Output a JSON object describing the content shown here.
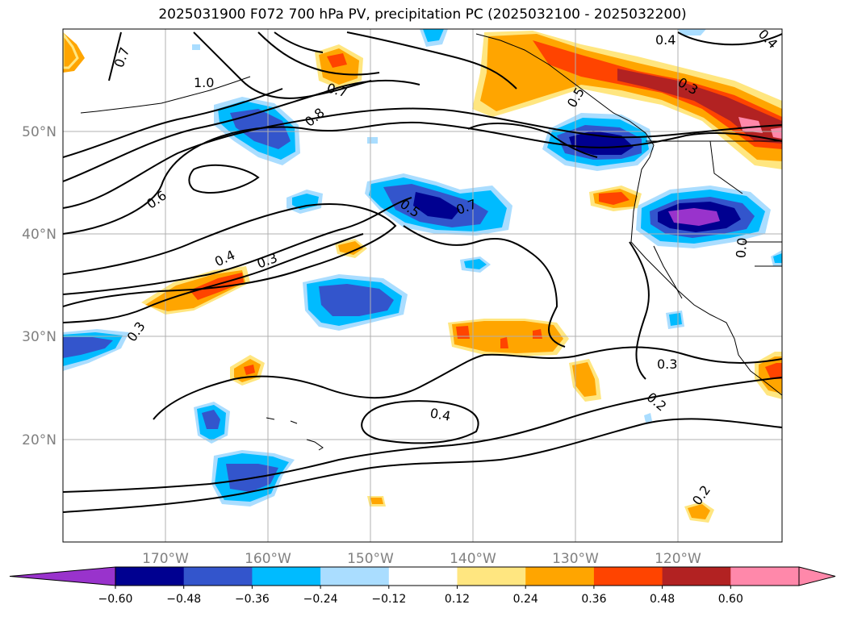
{
  "title": "2025031900 F072 700 hPa PV, precipitation PC (2025032100 - 2025032200)",
  "map": {
    "lon_labels": [
      "170°W",
      "160°W",
      "150°W",
      "140°W",
      "130°W",
      "120°W"
    ],
    "lat_labels": [
      "50°N",
      "40°N",
      "30°N",
      "20°N"
    ],
    "gridlines": true
  },
  "contour_labels": [
    "0.7",
    "1.0",
    "0.7",
    "0.8",
    "0.6",
    "0.4",
    "0.3",
    "0.3",
    "0.5",
    "0.7",
    "0.4",
    "0.5",
    "0.3",
    "0.3",
    "0.2",
    "0.4",
    "0.2",
    "0.4",
    "0.0"
  ],
  "colorbar": {
    "tick_labels": [
      "−0.60",
      "−0.48",
      "−0.36",
      "−0.24",
      "−0.12",
      "0.12",
      "0.24",
      "0.36",
      "0.48",
      "0.60"
    ],
    "colors": [
      "#9933cc",
      "#000090",
      "#3355cc",
      "#00bbff",
      "#aaddff",
      "#ffffff",
      "#ffe680",
      "#ffa500",
      "#ff4400",
      "#b22222",
      "#ff88aa",
      "#ff88aa"
    ]
  }
}
